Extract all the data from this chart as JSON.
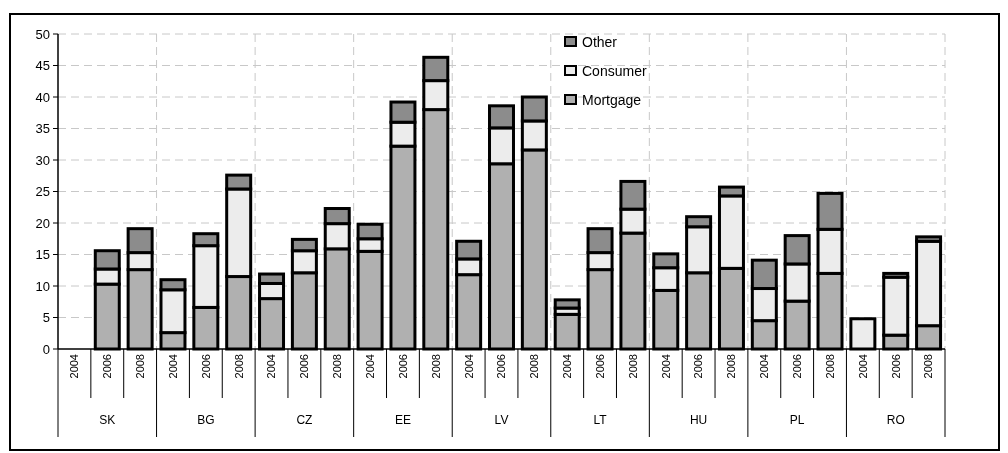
{
  "chart_data": {
    "type": "bar",
    "stacked": true,
    "categories": [
      "2004",
      "2006",
      "2008",
      "2004",
      "2006",
      "2008",
      "2004",
      "2006",
      "2008",
      "2004",
      "2006",
      "2008",
      "2004",
      "2006",
      "2008",
      "2004",
      "2006",
      "2008",
      "2004",
      "2006",
      "2008",
      "2004",
      "2006",
      "2008",
      "2004",
      "2006",
      "2008"
    ],
    "annotations": [
      "SK",
      "BG",
      "CZ",
      "EE",
      "LV",
      "LT",
      "HU",
      "PL",
      "RO"
    ],
    "series": [
      {
        "name": "Mortgage",
        "color": "#b0b0b0",
        "values": [
          null,
          10.3,
          12.6,
          2.6,
          6.6,
          11.5,
          8.0,
          12.1,
          15.9,
          15.5,
          32.2,
          38.0,
          11.8,
          29.4,
          31.6,
          5.5,
          12.6,
          18.4,
          9.3,
          12.1,
          12.8,
          4.5,
          7.6,
          12.0,
          0,
          2.2,
          3.7
        ]
      },
      {
        "name": "Consumer",
        "color": "#ececec",
        "values": [
          null,
          2.4,
          2.7,
          6.8,
          9.8,
          13.9,
          2.4,
          3.5,
          4.0,
          2.0,
          3.8,
          4.6,
          2.5,
          5.7,
          4.6,
          1.0,
          2.7,
          3.8,
          3.6,
          7.3,
          11.5,
          5.1,
          5.9,
          7.0,
          4.8,
          9.2,
          13.4
        ]
      },
      {
        "name": "Other",
        "color": "#8c8c8c",
        "values": [
          null,
          2.9,
          3.8,
          1.6,
          1.9,
          2.2,
          1.5,
          1.8,
          2.4,
          2.3,
          3.2,
          3.7,
          2.8,
          3.5,
          3.8,
          1.3,
          3.8,
          4.4,
          2.2,
          1.6,
          1.4,
          4.5,
          4.5,
          5.7,
          0,
          0.6,
          0.7
        ]
      }
    ],
    "ylim": [
      0,
      50
    ],
    "yticks": [
      0,
      5,
      10,
      15,
      20,
      25,
      30,
      35,
      40,
      45,
      50
    ],
    "grid": true,
    "legend": "top right"
  }
}
